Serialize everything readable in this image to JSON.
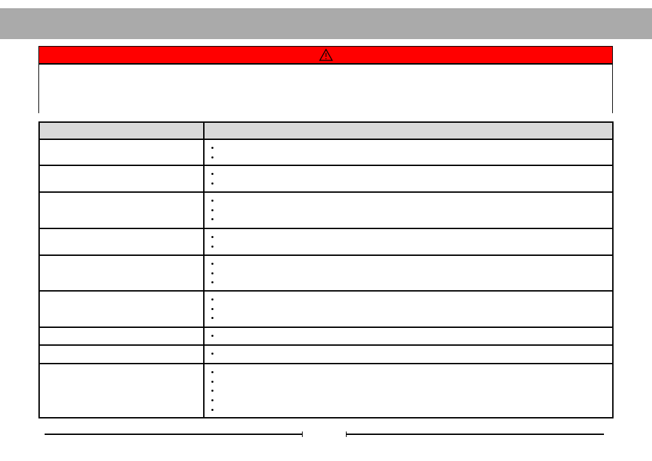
{
  "header": {
    "color": "#aaaaaa"
  },
  "warning": {
    "banner_color": "#ff0000",
    "icon": "warning-triangle-icon"
  },
  "table": {
    "header_color": "#d9d9d9",
    "rows": [
      {
        "bullets": 2
      },
      {
        "bullets": 2
      },
      {
        "bullets": 3
      },
      {
        "bullets": 2
      },
      {
        "bullets": 3
      },
      {
        "bullets": 3
      },
      {
        "bullets": 1
      },
      {
        "bullets": 1
      },
      {
        "bullets": 5
      }
    ]
  }
}
